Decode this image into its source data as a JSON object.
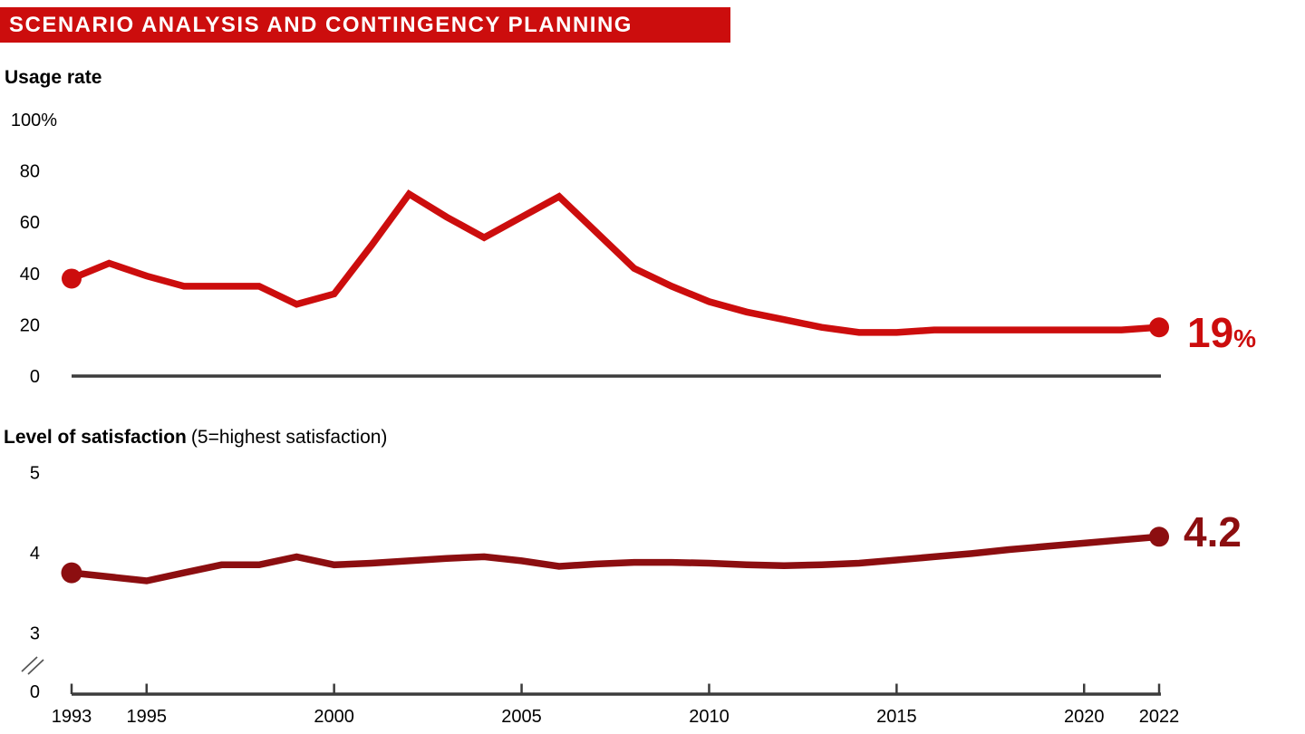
{
  "header": {
    "title": "SCENARIO ANALYSIS AND CONTINGENCY PLANNING",
    "bg_color": "#CC0D0D",
    "text_color": "#FFFFFF"
  },
  "charts": {
    "usage": {
      "title": "Usage rate",
      "end_label": {
        "value": "19",
        "suffix": "%"
      },
      "color": "#CC0D0D"
    },
    "satisfaction": {
      "title_bold": "Level of satisfaction",
      "title_note": "(5=highest satisfaction)",
      "end_label": "4.2",
      "color": "#8C0E10"
    }
  },
  "x_axis": {
    "tick_years": [
      "1993",
      "1995",
      "2000",
      "2005",
      "2010",
      "2015",
      "2020",
      "2022"
    ],
    "axis_color": "#3C3C3C",
    "label_color": "#000000"
  },
  "chart_data": [
    {
      "type": "line",
      "title": "Usage rate",
      "ylabel": "Usage rate (%)",
      "x": [
        1993,
        1994,
        1995,
        1996,
        1997,
        1998,
        1999,
        2000,
        2001,
        2002,
        2003,
        2004,
        2005,
        2006,
        2007,
        2008,
        2009,
        2010,
        2011,
        2012,
        2013,
        2014,
        2015,
        2016,
        2017,
        2018,
        2019,
        2020,
        2021,
        2022
      ],
      "values": [
        38,
        44,
        39,
        35,
        35,
        35,
        28,
        32,
        51,
        71,
        62,
        54,
        62,
        70,
        56,
        42,
        35,
        29,
        25,
        22,
        19,
        17,
        17,
        18,
        18,
        18,
        18,
        18,
        18,
        19
      ],
      "ylim": [
        0,
        100
      ],
      "yticks": [
        0,
        20,
        40,
        60,
        80,
        100
      ],
      "ytick_labels": [
        "0",
        "20",
        "40",
        "60",
        "80",
        "100%"
      ],
      "xlim": [
        1993,
        2022
      ],
      "grid": false,
      "legend": "none",
      "end_annotation": "19%",
      "line_color": "#CC0D0D",
      "markers": "first and last point only"
    },
    {
      "type": "line",
      "title": "Level of satisfaction (5=highest satisfaction)",
      "ylabel": "Level of satisfaction (1-5 scale)",
      "x": [
        1993,
        1994,
        1995,
        1996,
        1997,
        1998,
        1999,
        2000,
        2001,
        2002,
        2003,
        2004,
        2005,
        2006,
        2007,
        2008,
        2009,
        2010,
        2011,
        2012,
        2013,
        2014,
        2015,
        2016,
        2017,
        2018,
        2019,
        2020,
        2021,
        2022
      ],
      "values": [
        3.75,
        3.7,
        3.65,
        3.75,
        3.85,
        3.85,
        3.95,
        3.85,
        3.87,
        3.9,
        3.93,
        3.95,
        3.9,
        3.83,
        3.86,
        3.88,
        3.88,
        3.87,
        3.85,
        3.84,
        3.85,
        3.87,
        3.91,
        3.95,
        3.99,
        4.04,
        4.08,
        4.12,
        4.16,
        4.2
      ],
      "ylim": [
        3,
        5
      ],
      "yticks": [
        0,
        3,
        4,
        5
      ],
      "ytick_labels": [
        "0",
        "3",
        "4",
        "5"
      ],
      "axis_break_between": [
        0,
        3
      ],
      "xlim": [
        1993,
        2022
      ],
      "grid": false,
      "legend": "none",
      "end_annotation": "4.2",
      "line_color": "#8C0E10",
      "markers": "first and last point only"
    }
  ]
}
